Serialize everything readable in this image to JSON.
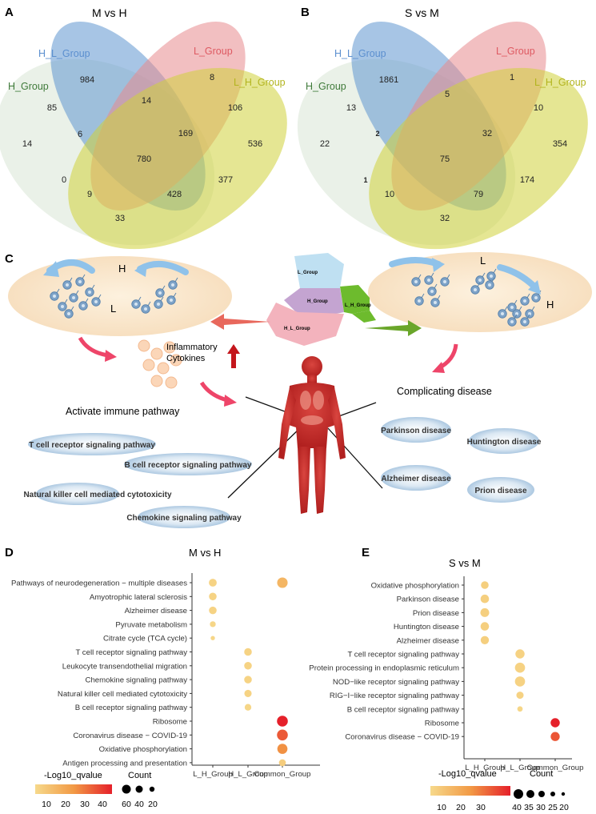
{
  "panelA": {
    "letter": "A",
    "title": "M vs H",
    "sets": [
      "H_L_Group",
      "L_Group",
      "H_Group",
      "L_H_Group"
    ],
    "regions": [
      "984",
      "8",
      "85",
      "14",
      "106",
      "14",
      "6",
      "169",
      "536",
      "780",
      "0",
      "377",
      "9",
      "428",
      "33"
    ]
  },
  "panelB": {
    "letter": "B",
    "title": "S vs M",
    "sets": [
      "H_L_Group",
      "L_Group",
      "H_Group",
      "L_H_Group"
    ],
    "regions": [
      "1861",
      "1",
      "13",
      "5",
      "10",
      "22",
      "2",
      "32",
      "354",
      "75",
      "1",
      "174",
      "10",
      "79",
      "32"
    ]
  },
  "panelC": {
    "letter": "C",
    "left_labels": [
      "H",
      "L"
    ],
    "right_labels": [
      "L",
      "H"
    ],
    "map_labels": [
      "L_Group",
      "H_Group",
      "L_H_Group",
      "H_L_Group"
    ],
    "inflammatory": [
      "Inflammatory",
      "Cytokines"
    ],
    "activate": "Activate immune pathway",
    "complicating": "Complicating disease",
    "immune_pathways": [
      "T cell receptor signaling pathway",
      "B cell receptor signaling pathway",
      "Natural killer cell mediated cytotoxicity",
      "Chemokine signaling pathway"
    ],
    "diseases": [
      "Parkinson disease",
      "Huntington disease",
      "Alzheimer disease",
      "Prion disease"
    ]
  },
  "panelD": {
    "letter": "D",
    "title": "M vs H",
    "legend_q_title": "-Log10_qvalue",
    "legend_q_ticks": [
      "10",
      "20",
      "30",
      "40"
    ],
    "legend_count_title": "Count",
    "legend_count_labels": [
      "60",
      "40",
      "20"
    ],
    "chart_data": {
      "type": "scatter",
      "categories": [
        "L_H_Group",
        "H_L_Group",
        "Common_Group"
      ],
      "terms": [
        "Pathways of neurodegeneration − multiple diseases",
        "Amyotrophic lateral sclerosis",
        "Alzheimer disease",
        "Pyruvate metabolism",
        "Citrate cycle (TCA cycle)",
        "T cell receptor signaling pathway",
        "Leukocyte transendothelial migration",
        "Chemokine signaling pathway",
        "Natural killer cell mediated cytotoxicity",
        "B cell receptor signaling pathway",
        "Ribosome",
        "Coronavirus disease − COVID-19",
        "Oxidative phosphorylation",
        "Antigen processing and presentation"
      ],
      "points": [
        {
          "term": 0,
          "group": 0,
          "count": 30,
          "q": 4
        },
        {
          "term": 0,
          "group": 2,
          "count": 60,
          "q": 14
        },
        {
          "term": 1,
          "group": 0,
          "count": 28,
          "q": 4
        },
        {
          "term": 2,
          "group": 0,
          "count": 28,
          "q": 4
        },
        {
          "term": 3,
          "group": 0,
          "count": 15,
          "q": 3
        },
        {
          "term": 4,
          "group": 0,
          "count": 8,
          "q": 3
        },
        {
          "term": 5,
          "group": 1,
          "count": 28,
          "q": 4
        },
        {
          "term": 6,
          "group": 1,
          "count": 28,
          "q": 4
        },
        {
          "term": 7,
          "group": 1,
          "count": 28,
          "q": 4
        },
        {
          "term": 8,
          "group": 1,
          "count": 25,
          "q": 4
        },
        {
          "term": 9,
          "group": 1,
          "count": 20,
          "q": 3
        },
        {
          "term": 10,
          "group": 2,
          "count": 65,
          "q": 45
        },
        {
          "term": 11,
          "group": 2,
          "count": 65,
          "q": 35
        },
        {
          "term": 12,
          "group": 2,
          "count": 55,
          "q": 25
        },
        {
          "term": 13,
          "group": 2,
          "count": 22,
          "q": 6
        }
      ]
    }
  },
  "panelE": {
    "letter": "E",
    "title": "S vs M",
    "legend_q_title": "-Log10_qvalue",
    "legend_q_ticks": [
      "10",
      "20",
      "30"
    ],
    "legend_count_title": "Count",
    "legend_count_labels": [
      "40",
      "35",
      "30",
      "25",
      "20"
    ],
    "chart_data": {
      "type": "scatter",
      "categories": [
        "L_H_Group",
        "H_L_Group",
        "Common_Group"
      ],
      "terms": [
        "Oxidative phosphorylation",
        "Parkinson disease",
        "Prion disease",
        "Huntington disease",
        "Alzheimer disease",
        "T cell receptor signaling pathway",
        "Protein processing in endoplasmic reticulum",
        "NOD−like receptor signaling pathway",
        "RIG−I−like receptor signaling pathway",
        "B cell receptor signaling pathway",
        "Ribosome",
        "Coronavirus disease − COVID-19"
      ],
      "points": [
        {
          "term": 0,
          "group": 0,
          "count": 26,
          "q": 5
        },
        {
          "term": 1,
          "group": 0,
          "count": 30,
          "q": 5
        },
        {
          "term": 2,
          "group": 0,
          "count": 32,
          "q": 5
        },
        {
          "term": 3,
          "group": 0,
          "count": 30,
          "q": 5
        },
        {
          "term": 4,
          "group": 0,
          "count": 29,
          "q": 5
        },
        {
          "term": 5,
          "group": 1,
          "count": 34,
          "q": 4
        },
        {
          "term": 6,
          "group": 1,
          "count": 40,
          "q": 4
        },
        {
          "term": 7,
          "group": 1,
          "count": 40,
          "q": 4
        },
        {
          "term": 8,
          "group": 1,
          "count": 24,
          "q": 4
        },
        {
          "term": 9,
          "group": 1,
          "count": 18,
          "q": 3
        },
        {
          "term": 10,
          "group": 2,
          "count": 34,
          "q": 38
        },
        {
          "term": 11,
          "group": 2,
          "count": 33,
          "q": 30
        }
      ]
    }
  }
}
